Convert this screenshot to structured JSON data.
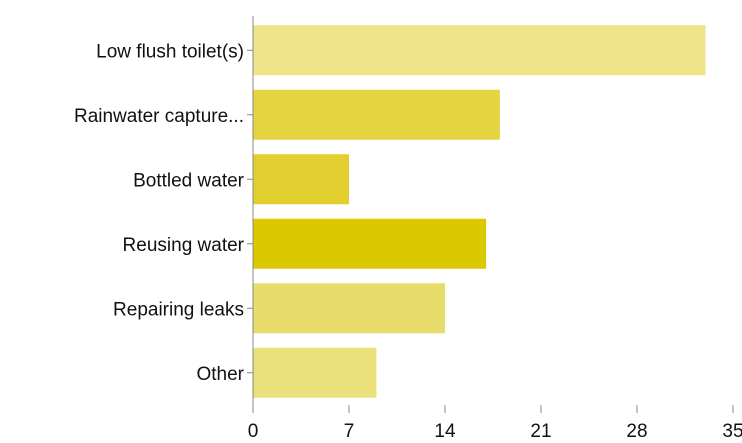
{
  "chart_data": {
    "type": "bar",
    "orientation": "horizontal",
    "title": "",
    "xlabel": "",
    "ylabel": "",
    "categories": [
      "Low flush toilet(s)",
      "Rainwater capture...",
      "Bottled water",
      "Reusing water",
      "Repairing leaks",
      "Other"
    ],
    "values": [
      33,
      18,
      7,
      17,
      14,
      9
    ],
    "xlim": [
      0,
      35
    ],
    "xticks": [
      0,
      7,
      14,
      21,
      28,
      35
    ],
    "grid": false,
    "legend": "none",
    "bar_colors": [
      "#efe48a",
      "#e5d43f",
      "#e2cf2f",
      "#dcc800",
      "#e8dc6a",
      "#ebe07a"
    ],
    "axis_color": "#888888"
  }
}
